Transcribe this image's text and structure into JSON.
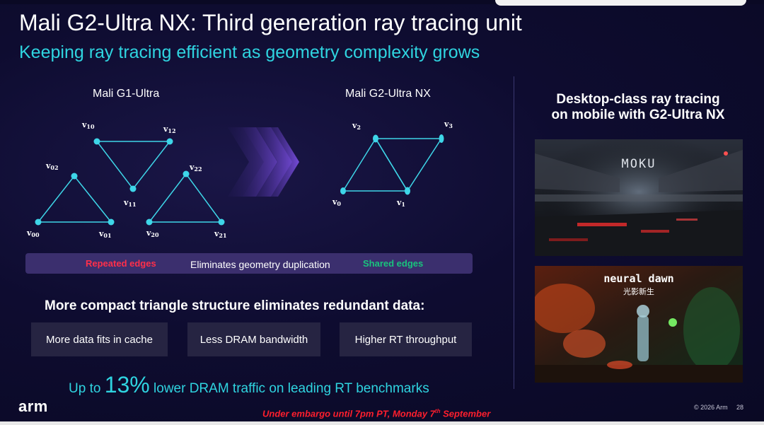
{
  "slide": {
    "title": "Mali G2-Ultra NX: Third generation ray tracing unit",
    "subtitle": "Keeping ray tracing efficient as geometry complexity grows",
    "left_heading": "Mali G1-Ultra",
    "right_heading": "Mali G2-Ultra NX",
    "g1_vertices": {
      "v10": {
        "base": "v",
        "sub": "10"
      },
      "v12": {
        "base": "v",
        "sub": "12"
      },
      "v02": {
        "base": "v",
        "sub": "02"
      },
      "v22": {
        "base": "v",
        "sub": "22"
      },
      "v11": {
        "base": "v",
        "sub": "11"
      },
      "v00": {
        "base": "v",
        "sub": "00"
      },
      "v01": {
        "base": "v",
        "sub": "01"
      },
      "v20": {
        "base": "v",
        "sub": "20"
      },
      "v21": {
        "base": "v",
        "sub": "21"
      }
    },
    "g2_vertices": {
      "v0": {
        "base": "v",
        "sub": "0"
      },
      "v1": {
        "base": "v",
        "sub": "1"
      },
      "v2": {
        "base": "v",
        "sub": "2"
      },
      "v3": {
        "base": "v",
        "sub": "3"
      }
    },
    "strip": {
      "repeated": "Repeated edges",
      "eliminates": "Eliminates geometry duplication",
      "shared": "Shared edges"
    },
    "compact_heading": "More compact triangle structure eliminates redundant data:",
    "benefits": [
      "More data fits in cache",
      "Less DRAM bandwidth",
      "Higher RT throughput"
    ],
    "stat": {
      "prefix": "Up to ",
      "value": "13%",
      "suffix": " lower DRAM traffic on leading RT benchmarks"
    },
    "right_panel": {
      "title_line1": "Desktop-class ray tracing",
      "title_line2": "on mobile with G2-Ultra NX",
      "game1_logo": "MOKU",
      "game2_logo": "neural dawn",
      "game2_cn": "光影新生"
    },
    "footer": {
      "logo": "arm",
      "embargo_a": "Under embargo until 7pm PT, Monday 7",
      "embargo_sup": "th",
      "embargo_b": " September",
      "copyright": "© 2026 Arm",
      "page": "28"
    }
  },
  "colors": {
    "accent_cyan": "#2fd4e0",
    "repeated_red": "#ff2f4a",
    "shared_green": "#19c37d",
    "background": "#0e0c30"
  }
}
